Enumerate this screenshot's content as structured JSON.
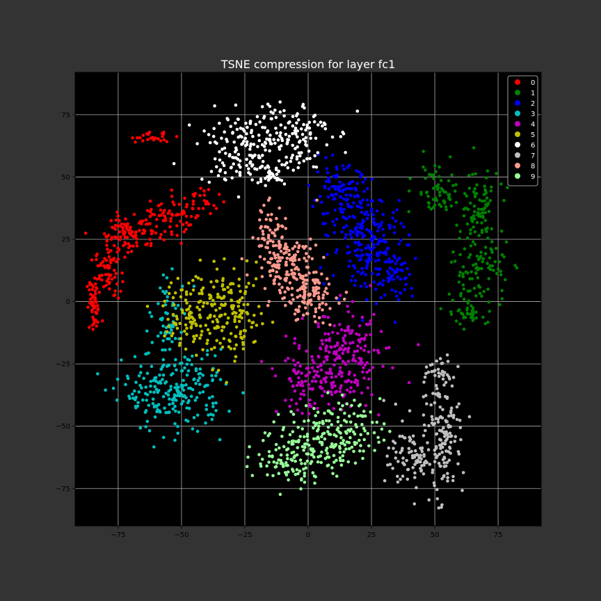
{
  "figure": {
    "background": "#333333",
    "plot_background": "#000000",
    "grid_color": "#b0b0b0",
    "text_color": "#ffffff"
  },
  "chart_data": {
    "type": "scatter",
    "title": "TSNE compression for layer fc1",
    "xlabel": "",
    "ylabel": "",
    "xlim": [
      -92,
      92
    ],
    "ylim": [
      -90,
      92
    ],
    "xticks": [
      -75,
      -50,
      -25,
      0,
      25,
      50,
      75
    ],
    "yticks": [
      -75,
      -50,
      -25,
      0,
      25,
      50,
      75
    ],
    "xtick_labels": [
      "−75",
      "−50",
      "−25",
      "0",
      "25",
      "50",
      "75"
    ],
    "ytick_labels": [
      "−75",
      "−50",
      "−25",
      "0",
      "25",
      "50",
      "75"
    ],
    "grid": true,
    "legend_position": "top-right",
    "series": [
      {
        "name": "0",
        "color": "#ff0000",
        "clusters": [
          {
            "x": -84.5,
            "y": -2.0,
            "sx": 1.5,
            "sy": 5.5,
            "n": 55
          },
          {
            "x": -79.0,
            "y": 12.0,
            "sx": 2.5,
            "sy": 5.0,
            "n": 60
          },
          {
            "x": -70.0,
            "y": 28.0,
            "sx": 5.5,
            "sy": 4.0,
            "n": 90
          },
          {
            "x": -57.0,
            "y": 33.0,
            "sx": 4.5,
            "sy": 5.0,
            "n": 60
          },
          {
            "x": -43.0,
            "y": 39.0,
            "sx": 4.0,
            "sy": 3.5,
            "n": 35
          },
          {
            "x": -62.0,
            "y": 66.0,
            "sx": 4.5,
            "sy": 1.0,
            "n": 25
          }
        ]
      },
      {
        "name": "1",
        "color": "#008000",
        "clusters": [
          {
            "x": 51.0,
            "y": 44.0,
            "sx": 4.5,
            "sy": 6.0,
            "n": 65
          },
          {
            "x": 67.0,
            "y": 38.0,
            "sx": 4.0,
            "sy": 8.0,
            "n": 80
          },
          {
            "x": 68.0,
            "y": 13.0,
            "sx": 5.5,
            "sy": 8.0,
            "n": 95
          },
          {
            "x": 64.0,
            "y": -4.0,
            "sx": 5.0,
            "sy": 3.0,
            "n": 35
          }
        ]
      },
      {
        "name": "2",
        "color": "#0000ff",
        "clusters": [
          {
            "x": 13.0,
            "y": 42.0,
            "sx": 6.0,
            "sy": 6.0,
            "n": 110
          },
          {
            "x": 24.0,
            "y": 24.0,
            "sx": 7.5,
            "sy": 9.5,
            "n": 180
          },
          {
            "x": 34.0,
            "y": 12.0,
            "sx": 4.0,
            "sy": 6.0,
            "n": 55
          }
        ]
      },
      {
        "name": "3",
        "color": "#00bfbf",
        "clusters": [
          {
            "x": -55.0,
            "y": -6.0,
            "sx": 4.0,
            "sy": 7.0,
            "n": 55
          },
          {
            "x": -53.0,
            "y": -36.0,
            "sx": 10.0,
            "sy": 8.0,
            "n": 230
          }
        ]
      },
      {
        "name": "4",
        "color": "#bf00bf",
        "clusters": [
          {
            "x": 15.0,
            "y": -20.0,
            "sx": 8.0,
            "sy": 8.0,
            "n": 150
          },
          {
            "x": 4.0,
            "y": -33.0,
            "sx": 10.0,
            "sy": 6.0,
            "n": 130
          }
        ]
      },
      {
        "name": "5",
        "color": "#bfbf00",
        "clusters": [
          {
            "x": -45.0,
            "y": -4.0,
            "sx": 6.0,
            "sy": 8.0,
            "n": 110
          },
          {
            "x": -30.0,
            "y": -6.0,
            "sx": 6.5,
            "sy": 9.0,
            "n": 140
          }
        ]
      },
      {
        "name": "6",
        "color": "#ffffff",
        "clusters": [
          {
            "x": -28.0,
            "y": 62.0,
            "sx": 8.0,
            "sy": 7.0,
            "n": 120
          },
          {
            "x": -7.0,
            "y": 68.0,
            "sx": 8.0,
            "sy": 7.0,
            "n": 130
          },
          {
            "x": -18.0,
            "y": 51.0,
            "sx": 6.0,
            "sy": 3.0,
            "n": 40
          }
        ]
      },
      {
        "name": "7",
        "color": "#bfbfbf",
        "clusters": [
          {
            "x": 51.0,
            "y": -32.0,
            "sx": 3.0,
            "sy": 6.0,
            "n": 45
          },
          {
            "x": 44.0,
            "y": -62.0,
            "sx": 6.0,
            "sy": 7.0,
            "n": 110
          },
          {
            "x": 54.0,
            "y": -56.0,
            "sx": 3.5,
            "sy": 11.0,
            "n": 100
          }
        ]
      },
      {
        "name": "8",
        "color": "#fa9a8e",
        "clusters": [
          {
            "x": -16.0,
            "y": 28.0,
            "sx": 3.5,
            "sy": 6.0,
            "n": 55
          },
          {
            "x": -8.0,
            "y": 15.0,
            "sx": 6.0,
            "sy": 6.0,
            "n": 130
          },
          {
            "x": 0.0,
            "y": 2.0,
            "sx": 5.5,
            "sy": 5.0,
            "n": 110
          }
        ]
      },
      {
        "name": "9",
        "color": "#98fb98",
        "clusters": [
          {
            "x": 10.0,
            "y": -52.0,
            "sx": 9.0,
            "sy": 6.0,
            "n": 150
          },
          {
            "x": -3.0,
            "y": -62.0,
            "sx": 9.0,
            "sy": 6.0,
            "n": 130
          }
        ]
      }
    ]
  }
}
